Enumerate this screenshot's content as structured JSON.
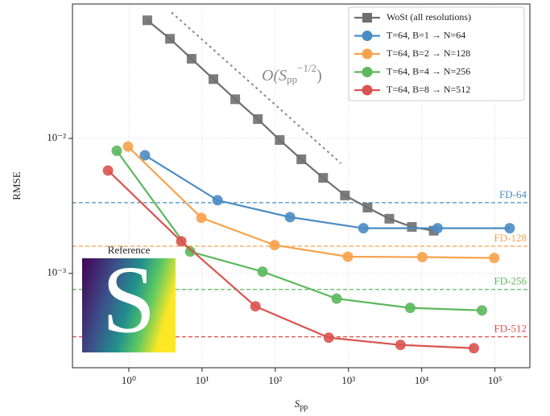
{
  "chart_data": {
    "type": "line",
    "x_label": {
      "main": "S",
      "sub": "pp"
    },
    "y_label": "RMSE",
    "log_x": true,
    "log_y": true,
    "grid": true,
    "legend": "upper right",
    "xlim": [
      0.17,
      300000
    ],
    "ylim": [
      0.0002,
      0.099
    ],
    "xticks": [
      {
        "value": 1,
        "label": "10⁰"
      },
      {
        "value": 10,
        "label": "10¹"
      },
      {
        "value": 100,
        "label": "10²"
      },
      {
        "value": 1000,
        "label": "10³"
      },
      {
        "value": 10000,
        "label": "10⁴"
      },
      {
        "value": 100000,
        "label": "10⁵"
      }
    ],
    "yticks": [
      {
        "value": 0.001,
        "label": "10⁻³"
      },
      {
        "value": 0.01,
        "label": "10⁻²"
      }
    ],
    "series": [
      {
        "name": "WoSt (all resolutions)",
        "color": "#6f6f6f",
        "marker": "square",
        "x": [
          1.79,
          3.65,
          7.2,
          14.3,
          28.4,
          57.8,
          115,
          227,
          451,
          895,
          1820,
          3610,
          7340,
          14600
        ],
        "values": [
          0.075,
          0.0547,
          0.0389,
          0.0275,
          0.0195,
          0.0139,
          0.00973,
          0.007,
          0.0051,
          0.00378,
          0.00307,
          0.00254,
          0.00221,
          0.00207
        ]
      },
      {
        "name": "T=64, B=1 → N=64",
        "color": "#4a8cc2",
        "marker": "circle",
        "x": [
          1.66,
          16.3,
          159,
          1600,
          16500,
          159000
        ],
        "values": [
          0.0075,
          0.00348,
          0.00261,
          0.00216,
          0.00216,
          0.00216
        ]
      },
      {
        "name": "T=64, B=2 → N=128",
        "color": "#f7a24c",
        "marker": "circle",
        "x": [
          0.975,
          9.8,
          98,
          980,
          10200,
          98000
        ],
        "values": [
          0.0087,
          0.00258,
          0.00162,
          0.00133,
          0.00132,
          0.0013
        ]
      },
      {
        "name": "T=64, B=4 → N=256",
        "color": "#5cb85c",
        "marker": "circle",
        "x": [
          0.684,
          6.9,
          67,
          689,
          6960,
          66500
        ],
        "values": [
          0.0081,
          0.00145,
          0.00103,
          0.00065,
          0.000555,
          0.000532
        ]
      },
      {
        "name": "T=64, B=8 → N=512",
        "color": "#d9534f",
        "marker": "circle",
        "x": [
          0.52,
          5.2,
          53.6,
          538,
          5130,
          51600
        ],
        "values": [
          0.00578,
          0.00173,
          0.00057,
          0.000334,
          0.000295,
          0.000279
        ]
      }
    ],
    "hlines": [
      {
        "label": "FD-64",
        "value": 0.00334,
        "color": "#4a8cc2"
      },
      {
        "label": "FD-128",
        "value": 0.00159,
        "color": "#f7a24c"
      },
      {
        "label": "FD-256",
        "value": 0.00076,
        "color": "#5cb85c"
      },
      {
        "label": "FD-512",
        "value": 0.000339,
        "color": "#d9534f"
      }
    ],
    "reference_line": {
      "x": [
        3.83,
        788
      ],
      "values": [
        0.0859,
        0.00654
      ],
      "color": "#8a8a8a"
    },
    "annotation": {
      "base": "O(S",
      "sub": "pp",
      "sup": "−1/2",
      "end": ")"
    },
    "inset": {
      "title": "Reference",
      "letter": "S"
    }
  }
}
